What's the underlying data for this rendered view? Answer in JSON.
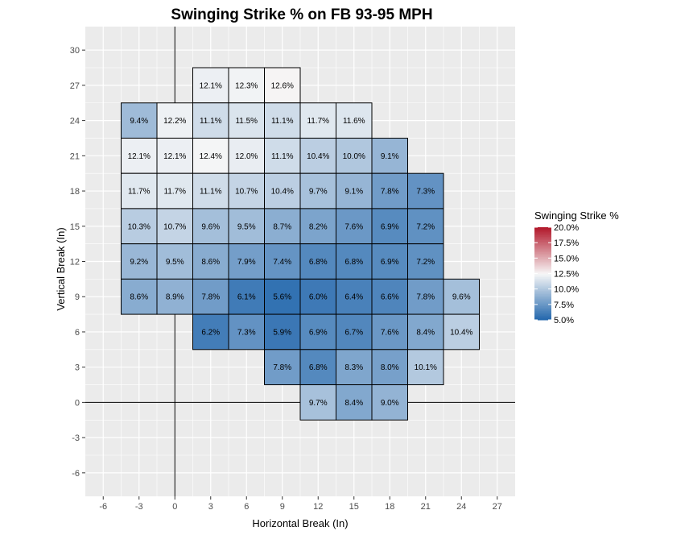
{
  "chart_data": {
    "type": "heatmap",
    "title": "Swinging Strike % on FB 93-95 MPH",
    "xlabel": "Horizontal Break (In)",
    "ylabel": "Vertical Break (In)",
    "xlim": [
      -7.5,
      28.5
    ],
    "ylim": [
      -8,
      32
    ],
    "x_ticks": [
      -6,
      -3,
      0,
      3,
      6,
      9,
      12,
      15,
      18,
      21,
      24,
      27
    ],
    "x_tick_labels": [
      "-6",
      "-3",
      "0",
      "3",
      "6",
      "9",
      "12",
      "15",
      "18",
      "21",
      "24",
      "27"
    ],
    "y_ticks": [
      -6,
      -3,
      0,
      3,
      6,
      9,
      12,
      15,
      18,
      21,
      24,
      27,
      30
    ],
    "y_tick_labels": [
      "-6",
      "-3",
      "0",
      "3",
      "6",
      "9",
      "12",
      "15",
      "18",
      "21",
      "24",
      "27",
      "30"
    ],
    "grid": true,
    "cell_width": 3,
    "cell_height": 3,
    "cells": [
      {
        "x": 3,
        "y": 27,
        "value": 12.1,
        "label": "12.1%"
      },
      {
        "x": 6,
        "y": 27,
        "value": 12.3,
        "label": "12.3%"
      },
      {
        "x": 9,
        "y": 27,
        "value": 12.6,
        "label": "12.6%"
      },
      {
        "x": -3,
        "y": 24,
        "value": 9.4,
        "label": "9.4%"
      },
      {
        "x": 0,
        "y": 24,
        "value": 12.2,
        "label": "12.2%"
      },
      {
        "x": 3,
        "y": 24,
        "value": 11.1,
        "label": "11.1%"
      },
      {
        "x": 6,
        "y": 24,
        "value": 11.5,
        "label": "11.5%"
      },
      {
        "x": 9,
        "y": 24,
        "value": 11.1,
        "label": "11.1%"
      },
      {
        "x": 12,
        "y": 24,
        "value": 11.7,
        "label": "11.7%"
      },
      {
        "x": 15,
        "y": 24,
        "value": 11.6,
        "label": "11.6%"
      },
      {
        "x": -3,
        "y": 21,
        "value": 12.1,
        "label": "12.1%"
      },
      {
        "x": 0,
        "y": 21,
        "value": 12.1,
        "label": "12.1%"
      },
      {
        "x": 3,
        "y": 21,
        "value": 12.4,
        "label": "12.4%"
      },
      {
        "x": 6,
        "y": 21,
        "value": 12.0,
        "label": "12.0%"
      },
      {
        "x": 9,
        "y": 21,
        "value": 11.1,
        "label": "11.1%"
      },
      {
        "x": 12,
        "y": 21,
        "value": 10.4,
        "label": "10.4%"
      },
      {
        "x": 15,
        "y": 21,
        "value": 10.0,
        "label": "10.0%"
      },
      {
        "x": 18,
        "y": 21,
        "value": 9.1,
        "label": "9.1%"
      },
      {
        "x": -3,
        "y": 18,
        "value": 11.7,
        "label": "11.7%"
      },
      {
        "x": 0,
        "y": 18,
        "value": 11.7,
        "label": "11.7%"
      },
      {
        "x": 3,
        "y": 18,
        "value": 11.1,
        "label": "11.1%"
      },
      {
        "x": 6,
        "y": 18,
        "value": 10.7,
        "label": "10.7%"
      },
      {
        "x": 9,
        "y": 18,
        "value": 10.4,
        "label": "10.4%"
      },
      {
        "x": 12,
        "y": 18,
        "value": 9.7,
        "label": "9.7%"
      },
      {
        "x": 15,
        "y": 18,
        "value": 9.1,
        "label": "9.1%"
      },
      {
        "x": 18,
        "y": 18,
        "value": 7.8,
        "label": "7.8%"
      },
      {
        "x": 21,
        "y": 18,
        "value": 7.3,
        "label": "7.3%"
      },
      {
        "x": -3,
        "y": 15,
        "value": 10.3,
        "label": "10.3%"
      },
      {
        "x": 0,
        "y": 15,
        "value": 10.7,
        "label": "10.7%"
      },
      {
        "x": 3,
        "y": 15,
        "value": 9.6,
        "label": "9.6%"
      },
      {
        "x": 6,
        "y": 15,
        "value": 9.5,
        "label": "9.5%"
      },
      {
        "x": 9,
        "y": 15,
        "value": 8.7,
        "label": "8.7%"
      },
      {
        "x": 12,
        "y": 15,
        "value": 8.2,
        "label": "8.2%"
      },
      {
        "x": 15,
        "y": 15,
        "value": 7.6,
        "label": "7.6%"
      },
      {
        "x": 18,
        "y": 15,
        "value": 6.9,
        "label": "6.9%"
      },
      {
        "x": 21,
        "y": 15,
        "value": 7.2,
        "label": "7.2%"
      },
      {
        "x": -3,
        "y": 12,
        "value": 9.2,
        "label": "9.2%"
      },
      {
        "x": 0,
        "y": 12,
        "value": 9.5,
        "label": "9.5%"
      },
      {
        "x": 3,
        "y": 12,
        "value": 8.6,
        "label": "8.6%"
      },
      {
        "x": 6,
        "y": 12,
        "value": 7.9,
        "label": "7.9%"
      },
      {
        "x": 9,
        "y": 12,
        "value": 7.4,
        "label": "7.4%"
      },
      {
        "x": 12,
        "y": 12,
        "value": 6.8,
        "label": "6.8%"
      },
      {
        "x": 15,
        "y": 12,
        "value": 6.8,
        "label": "6.8%"
      },
      {
        "x": 18,
        "y": 12,
        "value": 6.9,
        "label": "6.9%"
      },
      {
        "x": 21,
        "y": 12,
        "value": 7.2,
        "label": "7.2%"
      },
      {
        "x": -3,
        "y": 9,
        "value": 8.6,
        "label": "8.6%"
      },
      {
        "x": 0,
        "y": 9,
        "value": 8.9,
        "label": "8.9%"
      },
      {
        "x": 3,
        "y": 9,
        "value": 7.8,
        "label": "7.8%"
      },
      {
        "x": 6,
        "y": 9,
        "value": 6.1,
        "label": "6.1%"
      },
      {
        "x": 9,
        "y": 9,
        "value": 5.6,
        "label": "5.6%"
      },
      {
        "x": 12,
        "y": 9,
        "value": 6.0,
        "label": "6.0%"
      },
      {
        "x": 15,
        "y": 9,
        "value": 6.4,
        "label": "6.4%"
      },
      {
        "x": 18,
        "y": 9,
        "value": 6.6,
        "label": "6.6%"
      },
      {
        "x": 21,
        "y": 9,
        "value": 7.8,
        "label": "7.8%"
      },
      {
        "x": 24,
        "y": 9,
        "value": 9.6,
        "label": "9.6%"
      },
      {
        "x": 3,
        "y": 6,
        "value": 6.2,
        "label": "6.2%"
      },
      {
        "x": 6,
        "y": 6,
        "value": 7.3,
        "label": "7.3%"
      },
      {
        "x": 9,
        "y": 6,
        "value": 5.9,
        "label": "5.9%"
      },
      {
        "x": 12,
        "y": 6,
        "value": 6.9,
        "label": "6.9%"
      },
      {
        "x": 15,
        "y": 6,
        "value": 6.7,
        "label": "6.7%"
      },
      {
        "x": 18,
        "y": 6,
        "value": 7.6,
        "label": "7.6%"
      },
      {
        "x": 21,
        "y": 6,
        "value": 8.4,
        "label": "8.4%"
      },
      {
        "x": 24,
        "y": 6,
        "value": 10.4,
        "label": "10.4%"
      },
      {
        "x": 9,
        "y": 3,
        "value": 7.8,
        "label": "7.8%"
      },
      {
        "x": 12,
        "y": 3,
        "value": 6.8,
        "label": "6.8%"
      },
      {
        "x": 15,
        "y": 3,
        "value": 8.3,
        "label": "8.3%"
      },
      {
        "x": 18,
        "y": 3,
        "value": 8.0,
        "label": "8.0%"
      },
      {
        "x": 21,
        "y": 3,
        "value": 10.1,
        "label": "10.1%"
      },
      {
        "x": 12,
        "y": 0,
        "value": 9.7,
        "label": "9.7%"
      },
      {
        "x": 15,
        "y": 0,
        "value": 8.4,
        "label": "8.4%"
      },
      {
        "x": 18,
        "y": 0,
        "value": 9.0,
        "label": "9.0%"
      }
    ],
    "legend": {
      "title": "Swinging Strike %",
      "placement": "right",
      "min": 5.0,
      "max": 20.0,
      "midpoint": 12.5,
      "breaks": [
        5,
        7.5,
        10,
        12.5,
        15,
        17.5,
        20
      ],
      "labels": [
        "5.0%",
        "7.5%",
        "10.0%",
        "12.5%",
        "15.0%",
        "17.5%",
        "20.0%"
      ],
      "low_color": "#2166AC",
      "mid_color": "#F7F7F7",
      "high_color": "#B2182B"
    },
    "panel_background": "#EBEBEB",
    "grid_color": "#FFFFFF",
    "reference_lines": [
      {
        "axis": "x",
        "value": 0
      },
      {
        "axis": "y",
        "value": 0
      }
    ]
  }
}
